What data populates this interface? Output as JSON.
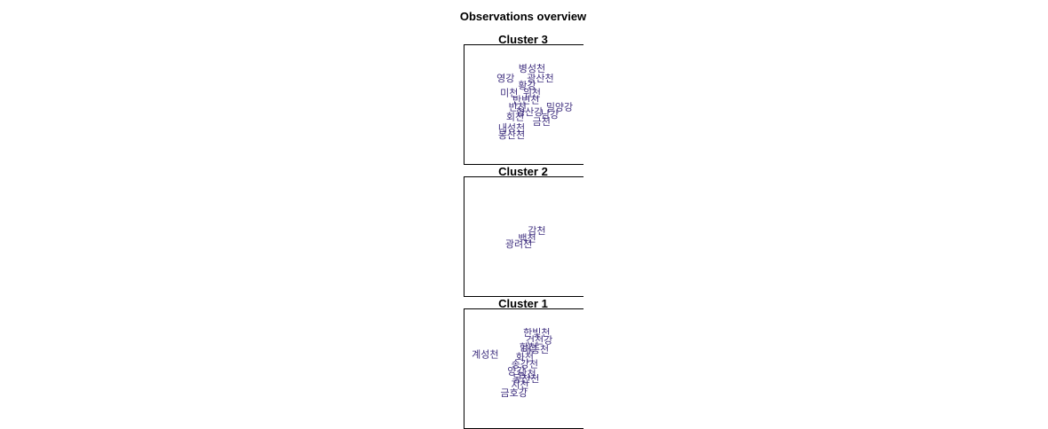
{
  "title": "Observations overview",
  "colors": {
    "label": "#3f2f7f",
    "frame": "#000000",
    "background": "#ffffff"
  },
  "chart_data": [
    {
      "type": "scatter",
      "title": "Cluster 3",
      "points": [
        {
          "label": "병성천",
          "x": 0.57,
          "y": 0.8
        },
        {
          "label": "영강",
          "x": 0.35,
          "y": 0.72
        },
        {
          "label": "광산천",
          "x": 0.64,
          "y": 0.72
        },
        {
          "label": "황강",
          "x": 0.53,
          "y": 0.66
        },
        {
          "label": "미천",
          "x": 0.38,
          "y": 0.6
        },
        {
          "label": "위천",
          "x": 0.57,
          "y": 0.6
        },
        {
          "label": "반변천",
          "x": 0.52,
          "y": 0.54
        },
        {
          "label": "밀양강",
          "x": 0.8,
          "y": 0.48
        },
        {
          "label": "반천",
          "x": 0.45,
          "y": 0.48
        },
        {
          "label": "형산강",
          "x": 0.55,
          "y": 0.44
        },
        {
          "label": "남강",
          "x": 0.72,
          "y": 0.42
        },
        {
          "label": "회천",
          "x": 0.43,
          "y": 0.4
        },
        {
          "label": "금천",
          "x": 0.65,
          "y": 0.36
        },
        {
          "label": "내성천",
          "x": 0.4,
          "y": 0.31
        },
        {
          "label": "봉산천",
          "x": 0.4,
          "y": 0.25
        }
      ]
    },
    {
      "type": "scatter",
      "title": "Cluster 2",
      "points": [
        {
          "label": "감천",
          "x": 0.61,
          "y": 0.55
        },
        {
          "label": "백천",
          "x": 0.53,
          "y": 0.49
        },
        {
          "label": "광려천",
          "x": 0.46,
          "y": 0.44
        }
      ]
    },
    {
      "type": "scatter",
      "title": "Cluster 1",
      "points": [
        {
          "label": "한빛천",
          "x": 0.61,
          "y": 0.8
        },
        {
          "label": "건천강",
          "x": 0.63,
          "y": 0.74
        },
        {
          "label": "함천",
          "x": 0.54,
          "y": 0.68
        },
        {
          "label": "대종천",
          "x": 0.6,
          "y": 0.66
        },
        {
          "label": "계성천",
          "x": 0.18,
          "y": 0.62
        },
        {
          "label": "화천",
          "x": 0.51,
          "y": 0.6
        },
        {
          "label": "송강천",
          "x": 0.51,
          "y": 0.54
        },
        {
          "label": "양강",
          "x": 0.44,
          "y": 0.48
        },
        {
          "label": "남천",
          "x": 0.53,
          "y": 0.46
        },
        {
          "label": "동천천",
          "x": 0.52,
          "y": 0.42
        },
        {
          "label": "지천",
          "x": 0.47,
          "y": 0.37
        },
        {
          "label": "금호강",
          "x": 0.42,
          "y": 0.3
        }
      ]
    }
  ]
}
